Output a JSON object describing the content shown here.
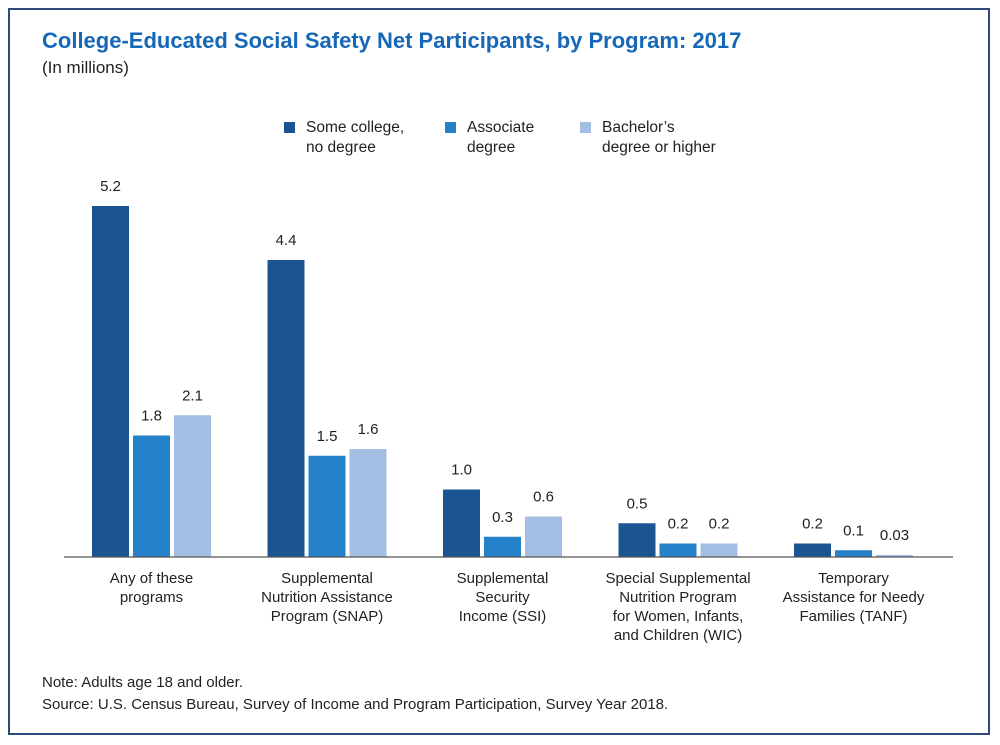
{
  "chart_data": {
    "type": "bar",
    "title": "College-Educated Social Safety Net Participants, by Program: 2017",
    "subtitle": "(In millions)",
    "categories": [
      [
        "Any of these",
        "programs"
      ],
      [
        "Supplemental",
        "Nutrition Assistance",
        "Program (SNAP)"
      ],
      [
        "Supplemental",
        "Security",
        "Income (SSI)"
      ],
      [
        "Special Supplemental",
        "Nutrition Program",
        "for Women, Infants,",
        "and Children (WIC)"
      ],
      [
        "Temporary",
        "Assistance for Needy",
        "Families (TANF)"
      ]
    ],
    "series": [
      {
        "name": "Some college,\nno degree",
        "color": "#1a5493",
        "values": [
          5.2,
          4.4,
          1.0,
          0.5,
          0.2
        ],
        "labels": [
          "5.2",
          "4.4",
          "1.0",
          "0.5",
          "0.2"
        ]
      },
      {
        "name": "Associate\ndegree",
        "color": "#2582c8",
        "values": [
          1.8,
          1.5,
          0.3,
          0.2,
          0.1
        ],
        "labels": [
          "1.8",
          "1.5",
          "0.3",
          "0.2",
          "0.1"
        ]
      },
      {
        "name": "Bachelor’s\ndegree or higher",
        "color": "#a3bde3",
        "values": [
          2.1,
          1.6,
          0.6,
          0.2,
          0.03
        ],
        "labels": [
          "2.1",
          "1.6",
          "0.6",
          "0.2",
          "0.03"
        ]
      }
    ],
    "ylim": [
      0,
      5.2
    ],
    "grid": false,
    "legend_position": "top-center"
  },
  "notes": {
    "note": "Note: Adults age 18 and older.",
    "source": "Source: U.S. Census Bureau, Survey of Income and Program Participation, Survey Year 2018."
  }
}
